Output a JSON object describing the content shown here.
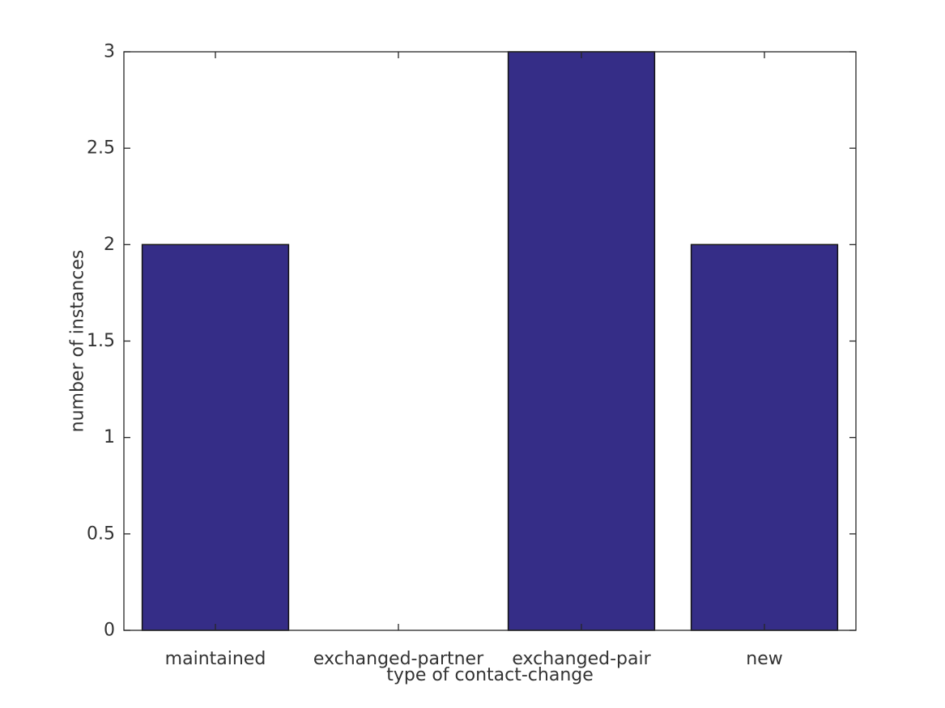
{
  "figure": {
    "background": "#ffffff"
  },
  "chart_data": {
    "type": "bar",
    "title": "",
    "xlabel": "type of contact-change",
    "ylabel": "number of instances",
    "categories": [
      "maintained",
      "exchanged-partner",
      "exchanged-pair",
      "new"
    ],
    "values": [
      2,
      0,
      3,
      2
    ],
    "ylim": [
      0,
      3
    ],
    "ytick_values": [
      0,
      0.5,
      1,
      1.5,
      2,
      2.5,
      3
    ],
    "ytick_labels": [
      "0",
      "0.5",
      "1",
      "1.5",
      "2",
      "2.5",
      "3"
    ],
    "bar_width_fraction": 0.8,
    "grid": false,
    "box": true,
    "tick_direction": "in",
    "legend": "none",
    "colors": {
      "bar_fill": "#352d87",
      "bar_edge": "#141414",
      "axis": "#262626",
      "text": "#333333",
      "background": "#ffffff"
    }
  }
}
